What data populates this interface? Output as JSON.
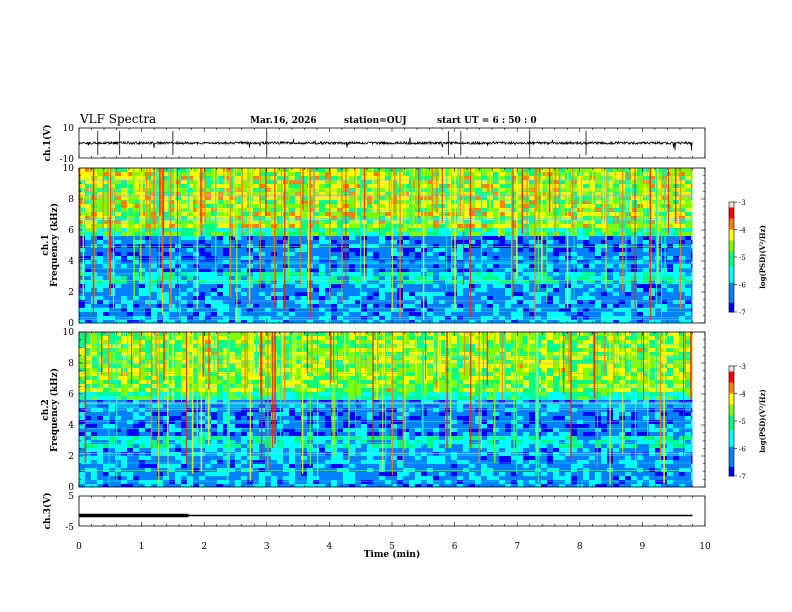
{
  "header": {
    "title": "VLF Spectra",
    "date": "Mar.16, 2026",
    "station": "station=OUJ",
    "start": "start  UT =  6 : 50 : 0"
  },
  "chart_data": [
    {
      "id": "ch1_waveform",
      "type": "line",
      "ylabel": "ch.1(V)",
      "ylim": [
        -10,
        10
      ],
      "yticklabels": [
        "10",
        "-10"
      ],
      "baseline": 0,
      "xlim": [
        0,
        10
      ],
      "data_end_min": 9.8
    },
    {
      "id": "ch1_spectrogram",
      "type": "heatmap",
      "ylabel": "ch.1",
      "ylabel2": "Frequency  (kHz)",
      "ylim": [
        0,
        10
      ],
      "yticklabels": [
        "0",
        "2",
        "4",
        "6",
        "8",
        "10"
      ],
      "xlim": [
        0,
        10
      ],
      "data_end_min": 9.8,
      "colorbar": {
        "label": "log(PSD)(V²/Hz)",
        "range": [
          -7,
          -3
        ],
        "ticklabels": [
          "-3",
          "-4",
          "-5",
          "-6",
          "-7"
        ]
      }
    },
    {
      "id": "ch2_spectrogram",
      "type": "heatmap",
      "ylabel": "ch.2",
      "ylabel2": "Frequency  (kHz)",
      "ylim": [
        0,
        10
      ],
      "yticklabels": [
        "0",
        "2",
        "4",
        "6",
        "8",
        "10"
      ],
      "xlim": [
        0,
        10
      ],
      "data_end_min": 9.8,
      "colorbar": {
        "label": "log(PSD)(V²/Hz)",
        "range": [
          -7,
          -3
        ],
        "ticklabels": [
          "-3",
          "-4",
          "-5",
          "-6",
          "-7"
        ]
      }
    },
    {
      "id": "ch3_trace",
      "type": "line",
      "ylabel": "ch.3(V)",
      "ylim": [
        -5,
        5
      ],
      "yticklabels": [
        "5",
        "-5"
      ],
      "x": [
        0,
        1.75,
        1.75,
        9.8
      ],
      "y": [
        -1.5,
        -1.5,
        -1.5,
        -1.5
      ],
      "segments": [
        {
          "x": [
            0,
            1.75
          ],
          "y": [
            -1.5,
            -1.5
          ],
          "weight": "thick"
        },
        {
          "x": [
            0,
            9.8
          ],
          "y": [
            -1.5,
            -1.5
          ],
          "weight": "thin"
        }
      ]
    }
  ],
  "xaxis": {
    "label": "Time  (min)",
    "range": [
      0,
      10
    ],
    "ticklabels": [
      "0",
      "1",
      "2",
      "3",
      "4",
      "5",
      "6",
      "7",
      "8",
      "9",
      "10"
    ]
  },
  "colors": {
    "frame": "#000000",
    "colormap": [
      "#000070",
      "#0000ff",
      "#0080ff",
      "#00ffff",
      "#00ff80",
      "#80ff00",
      "#ffff00",
      "#ff8000",
      "#ff0000",
      "#ffffff"
    ]
  }
}
